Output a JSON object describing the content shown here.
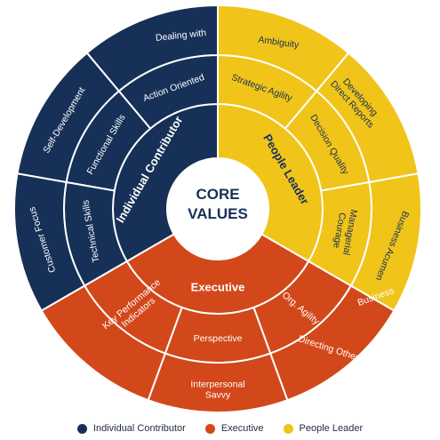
{
  "center": {
    "line1": "CORE",
    "line2": "VALUES"
  },
  "colors": {
    "navy": "#163057",
    "orange": "#d2481b",
    "yellow": "#f0c419",
    "center": "#ffffff",
    "text_center": "#163057",
    "text_light": "#ffffff",
    "text_dark": "#163057"
  },
  "groups": [
    {
      "key": "individual",
      "label": "Individual Contributor",
      "color": "#163057",
      "text_color": "#ffffff"
    },
    {
      "key": "people",
      "label": "People Leader",
      "color": "#f0c419",
      "text_color": "#163057"
    },
    {
      "key": "executive",
      "label": "Executive",
      "color": "#d2481b",
      "text_color": "#ffffff"
    }
  ],
  "middle_segments": [
    {
      "group": "individual",
      "lines": [
        "Action Oriented"
      ]
    },
    {
      "group": "individual",
      "lines": [
        "Functional Skills"
      ]
    },
    {
      "group": "individual",
      "lines": [
        "Technical Skills"
      ]
    },
    {
      "group": "people",
      "lines": [
        "Strategic Agility"
      ]
    },
    {
      "group": "people",
      "lines": [
        "Decision Quality"
      ]
    },
    {
      "group": "people",
      "lines": [
        "Managerial",
        "Courage"
      ]
    },
    {
      "group": "executive",
      "lines": [
        "Org. Agility"
      ]
    },
    {
      "group": "executive",
      "lines": [
        "Perspective"
      ]
    },
    {
      "group": "executive",
      "lines": [
        "Key Performance",
        "Indicators"
      ]
    }
  ],
  "outer_segments": [
    {
      "group": "individual",
      "lines": [
        "Dealing with"
      ]
    },
    {
      "group": "individual",
      "lines": [
        "Self-Development"
      ]
    },
    {
      "group": "individual",
      "lines": [
        "Customer Focus"
      ]
    },
    {
      "group": "people",
      "lines": [
        "Ambiguity"
      ]
    },
    {
      "group": "people",
      "lines": [
        "Developing",
        "Direct Reports"
      ]
    },
    {
      "group": "people",
      "lines": [
        "Business Acumen"
      ]
    },
    {
      "group": "executive",
      "lines": [
        "Directing Others"
      ]
    },
    {
      "group": "executive",
      "lines": [
        "Interpersonal",
        "Savvy"
      ]
    },
    {
      "group": "executive",
      "lines": [
        "Business"
      ]
    }
  ],
  "legend": [
    {
      "label": "Individual Contributor",
      "color": "#163057"
    },
    {
      "label": "Executive",
      "color": "#d2481b"
    },
    {
      "label": "People Leader",
      "color": "#f0c419"
    }
  ]
}
